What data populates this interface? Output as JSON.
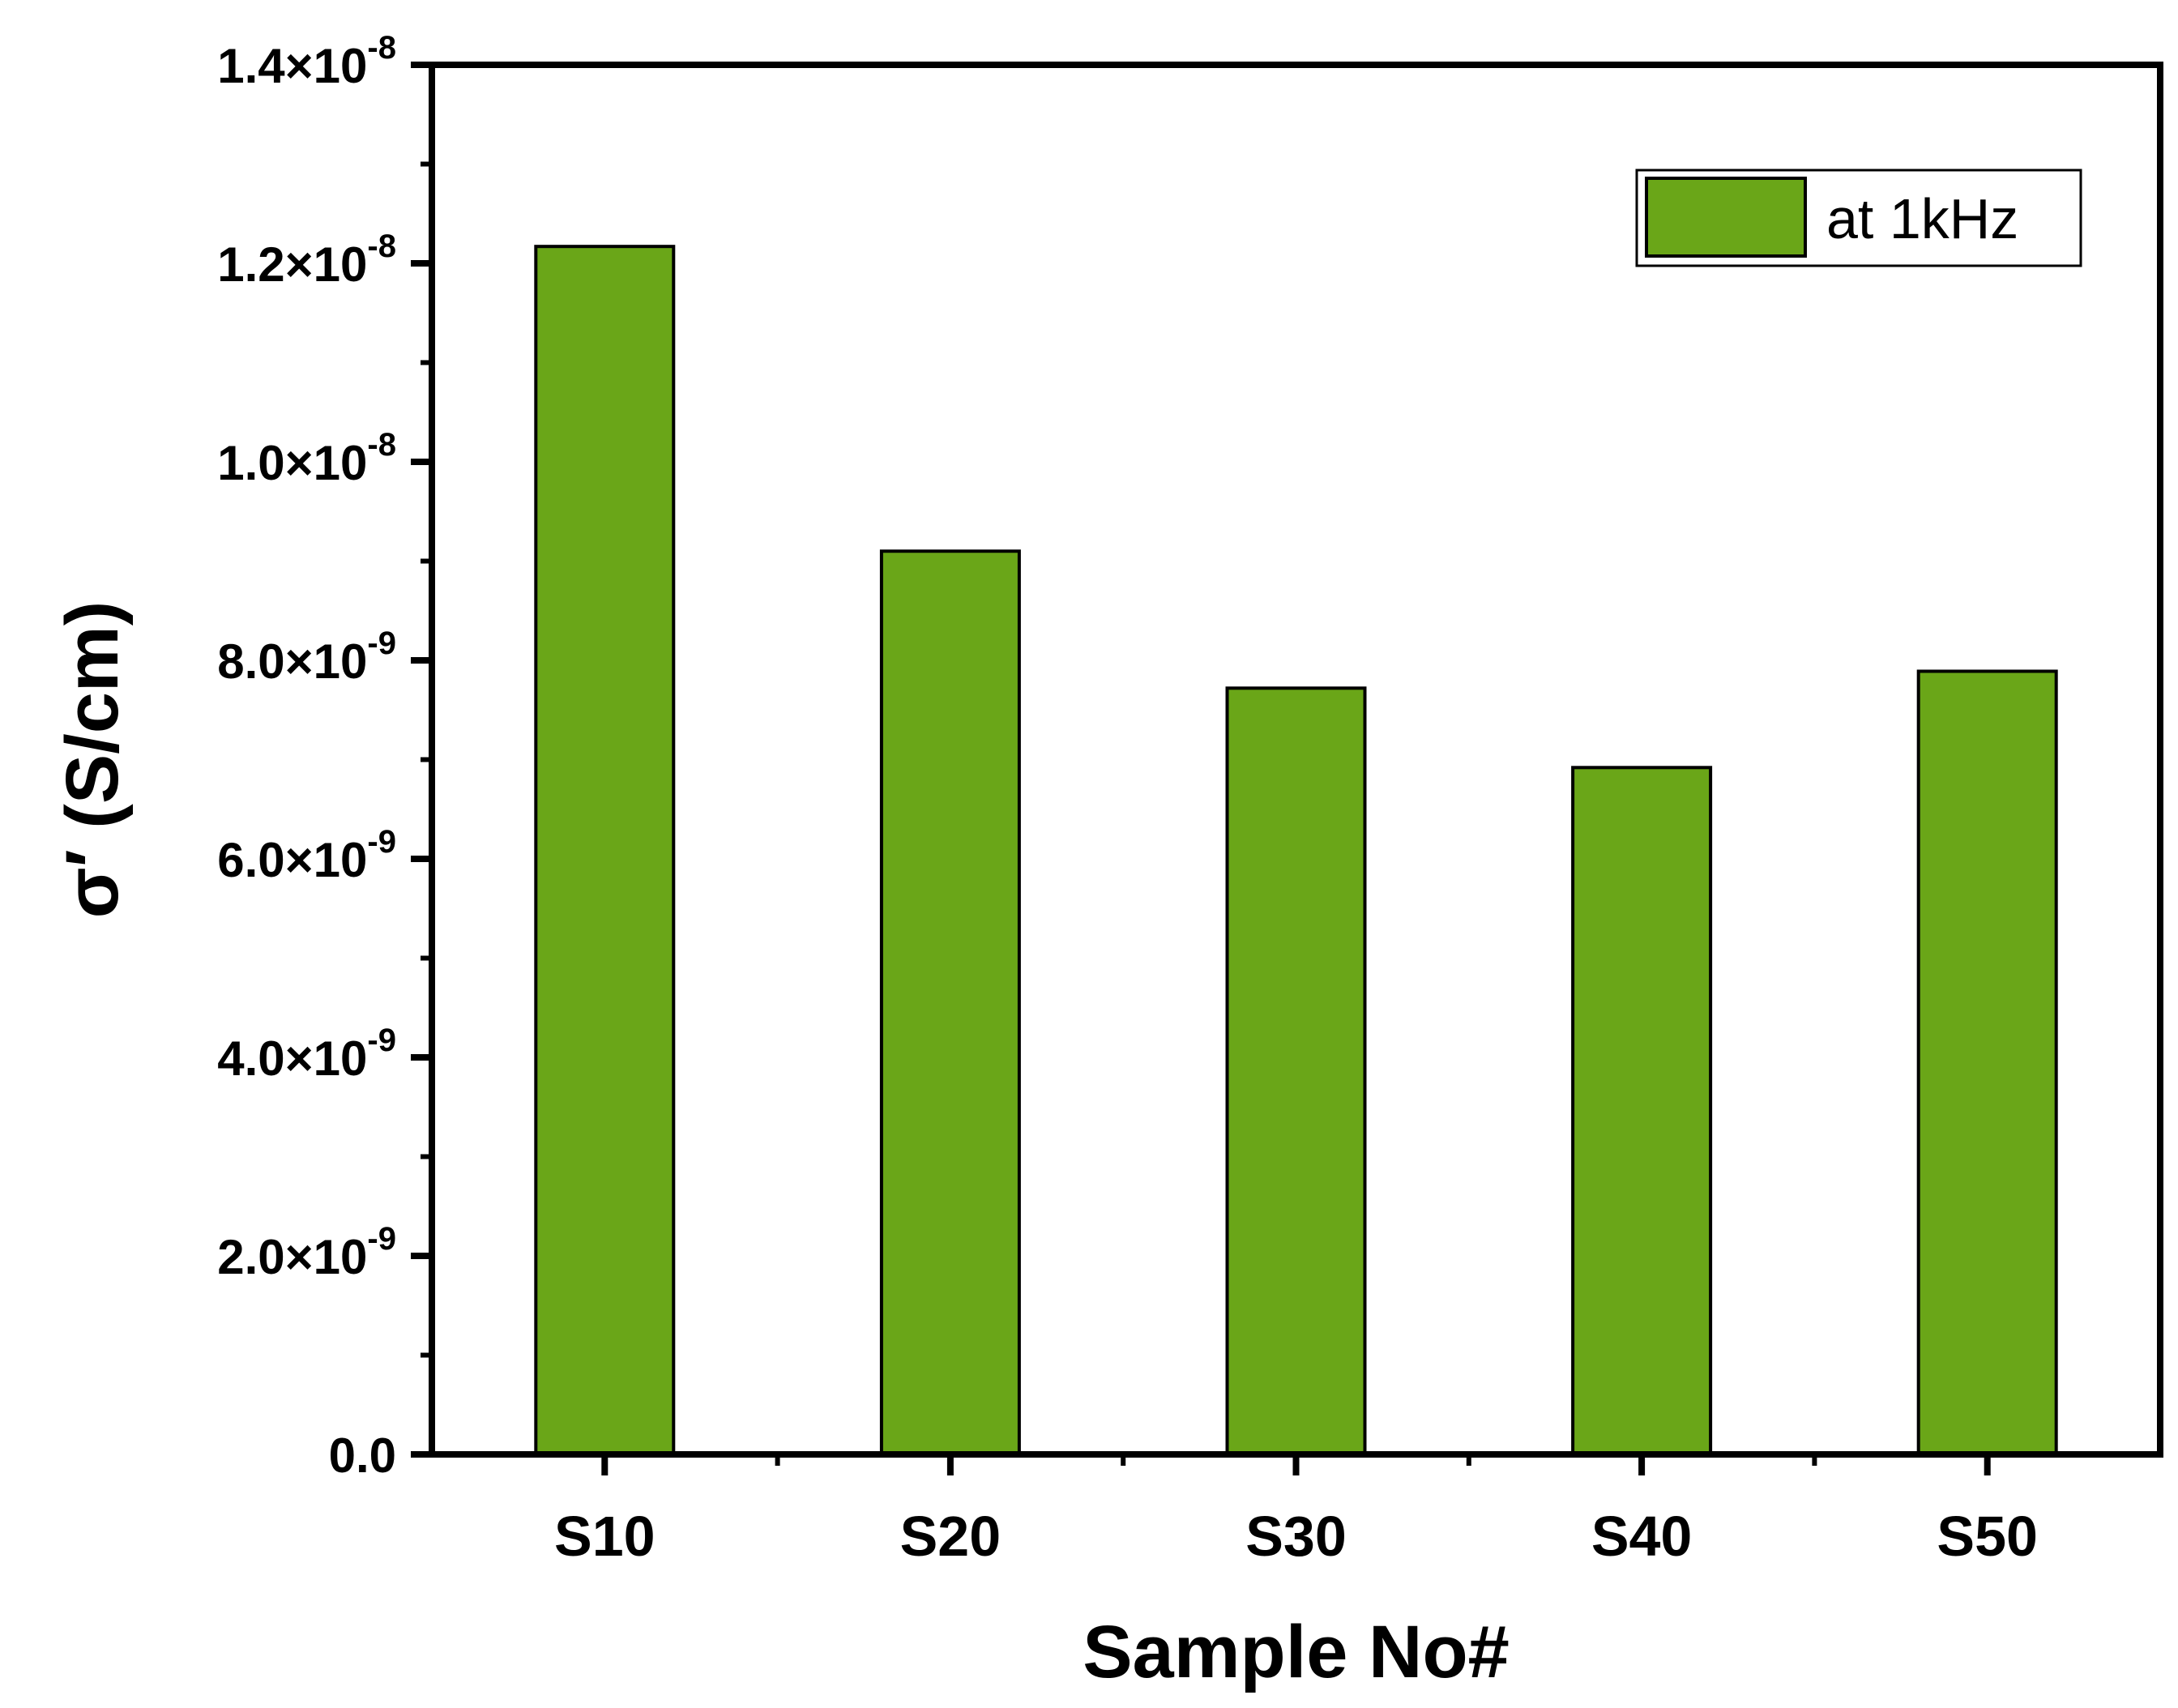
{
  "chart_data": {
    "type": "bar",
    "categories": [
      "S10",
      "S20",
      "S30",
      "S40",
      "S50"
    ],
    "series": [
      {
        "name": "at 1kHz",
        "values": [
          1.217e-08,
          9.1e-09,
          7.72e-09,
          6.92e-09,
          7.89e-09
        ],
        "color": "#6aa618"
      }
    ],
    "xlabel": "Sample No#",
    "ylabel": "σ′ (S/cm)",
    "ylim": [
      0,
      1.4e-08
    ],
    "yticks": [
      {
        "value": 0,
        "mantissa": "0.0",
        "exponent": ""
      },
      {
        "value": 2e-09,
        "mantissa": "2.0×10",
        "exponent": "-9"
      },
      {
        "value": 4e-09,
        "mantissa": "4.0×10",
        "exponent": "-9"
      },
      {
        "value": 6e-09,
        "mantissa": "6.0×10",
        "exponent": "-9"
      },
      {
        "value": 8e-09,
        "mantissa": "8.0×10",
        "exponent": "-9"
      },
      {
        "value": 1e-08,
        "mantissa": "1.0×10",
        "exponent": "-8"
      },
      {
        "value": 1.2e-08,
        "mantissa": "1.2×10",
        "exponent": "-8"
      },
      {
        "value": 1.4e-08,
        "mantissa": "1.4×10",
        "exponent": "-8"
      }
    ],
    "grid": false,
    "legend_position": "top-right",
    "bar_edge_color": "#000000",
    "frame_color": "#000000"
  }
}
